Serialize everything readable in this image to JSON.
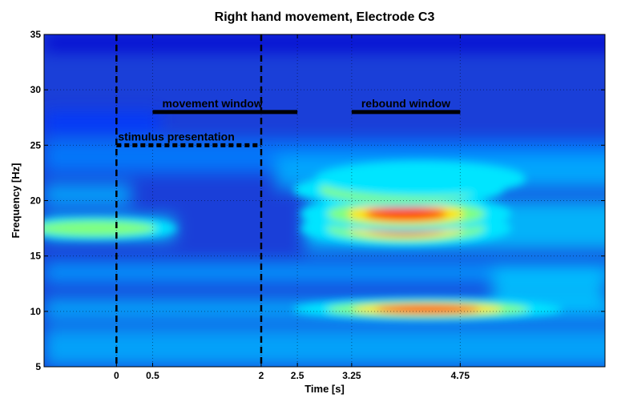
{
  "chart_data": {
    "type": "heatmap",
    "title": "Right hand movement, Electrode C3",
    "xlabel": "Time [s]",
    "ylabel": "Frequency [Hz]",
    "xlim": [
      -1,
      6.75
    ],
    "ylim": [
      5,
      35
    ],
    "x_ticks": [
      0,
      0.5,
      2,
      2.5,
      3.25,
      4.75
    ],
    "x_tick_labels": [
      "0",
      "0.5",
      "2",
      "2.5",
      "3.25",
      "4.75"
    ],
    "y_ticks": [
      5,
      10,
      15,
      20,
      25,
      30,
      35
    ],
    "y_tick_labels": [
      "5",
      "10",
      "15",
      "20",
      "25",
      "30",
      "35"
    ],
    "grid": true,
    "colormap": "jet",
    "hotspots": [
      {
        "time": 4.0,
        "frequency": 17.5,
        "intensity": 0.95
      },
      {
        "time": 4.0,
        "frequency": 18.8,
        "intensity": 0.8
      },
      {
        "time": 3.9,
        "frequency": 21.0,
        "intensity": 0.6
      },
      {
        "time": 4.3,
        "frequency": 10.2,
        "intensity": 0.8
      },
      {
        "time": -0.3,
        "frequency": 17.5,
        "intensity": 0.55
      },
      {
        "time": 4.2,
        "frequency": 22.0,
        "intensity": 0.35
      }
    ],
    "annotations": [
      {
        "label": "stimulus presentation",
        "x_start": 0,
        "x_end": 2,
        "y": 25,
        "style": "dotted"
      },
      {
        "label": "movement window",
        "x_start": 0.5,
        "x_end": 2.5,
        "y": 28,
        "style": "solid"
      },
      {
        "label": "rebound window",
        "x_start": 3.25,
        "x_end": 4.75,
        "y": 28,
        "style": "solid"
      }
    ],
    "vertical_markers": [
      0,
      2
    ]
  }
}
